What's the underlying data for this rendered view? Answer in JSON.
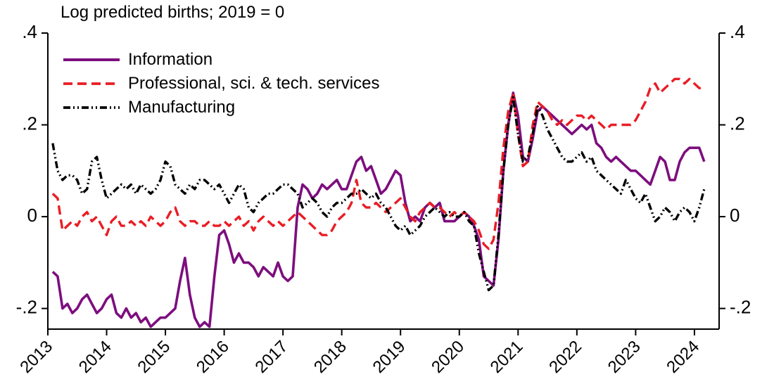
{
  "title": "Log predicted births; 2019 = 0",
  "axis": {
    "y_tick_labels": [
      ".4",
      ".2",
      "0",
      "-.2"
    ],
    "y_tick_values": [
      0.4,
      0.2,
      0,
      -0.2
    ],
    "x_tick_labels": [
      "2013",
      "2014",
      "2015",
      "2016",
      "2017",
      "2018",
      "2019",
      "2020",
      "2021",
      "2022",
      "2023",
      "2024"
    ],
    "x_tick_values": [
      2013,
      2014,
      2015,
      2016,
      2017,
      2018,
      2019,
      2020,
      2021,
      2022,
      2023,
      2024
    ]
  },
  "chart_data": {
    "type": "line",
    "title": "Log predicted births; 2019 = 0",
    "xlabel": "",
    "ylabel": "",
    "xlim": [
      2013,
      2024.42
    ],
    "ylim": [
      -0.245,
      0.4
    ],
    "grid": false,
    "legend_position": "top-left-inside",
    "x_start": 2013.083,
    "x_step_years": 0.08333,
    "x_ticks": [
      2013,
      2014,
      2015,
      2016,
      2017,
      2018,
      2019,
      2020,
      2021,
      2022,
      2023,
      2024
    ],
    "y_ticks": [
      0.4,
      0.2,
      0,
      -0.2
    ],
    "y_tick_labels": [
      ".4",
      ".2",
      "0",
      "-.2"
    ],
    "series": [
      {
        "name": "Information",
        "color": "#7D0E7E",
        "dash": "solid",
        "width": 3.6,
        "values": [
          -0.12,
          -0.13,
          -0.2,
          -0.19,
          -0.21,
          -0.2,
          -0.18,
          -0.17,
          -0.19,
          -0.21,
          -0.2,
          -0.18,
          -0.17,
          -0.21,
          -0.22,
          -0.2,
          -0.22,
          -0.21,
          -0.23,
          -0.22,
          -0.24,
          -0.23,
          -0.22,
          -0.22,
          -0.21,
          -0.2,
          -0.14,
          -0.09,
          -0.17,
          -0.22,
          -0.24,
          -0.23,
          -0.24,
          -0.13,
          -0.04,
          -0.03,
          -0.06,
          -0.1,
          -0.08,
          -0.1,
          -0.1,
          -0.11,
          -0.13,
          -0.11,
          -0.12,
          -0.13,
          -0.1,
          -0.13,
          -0.14,
          -0.13,
          0.02,
          0.07,
          0.06,
          0.04,
          0.05,
          0.07,
          0.06,
          0.07,
          0.08,
          0.06,
          0.06,
          0.09,
          0.12,
          0.13,
          0.1,
          0.11,
          0.08,
          0.05,
          0.06,
          0.08,
          0.1,
          0.09,
          0.03,
          -0.01,
          0.0,
          -0.01,
          0.02,
          0.03,
          0.02,
          0.03,
          -0.01,
          -0.01,
          -0.01,
          0.0,
          0.01,
          0.0,
          -0.02,
          -0.05,
          -0.13,
          -0.14,
          -0.15,
          -0.05,
          0.1,
          0.2,
          0.27,
          0.22,
          0.13,
          0.12,
          0.17,
          0.23,
          0.24,
          0.23,
          0.22,
          0.21,
          0.2,
          0.19,
          0.18,
          0.19,
          0.2,
          0.19,
          0.2,
          0.16,
          0.15,
          0.13,
          0.12,
          0.13,
          0.12,
          0.11,
          0.1,
          0.1,
          0.09,
          0.08,
          0.07,
          0.1,
          0.13,
          0.12,
          0.08,
          0.08,
          0.12,
          0.14,
          0.15,
          0.15,
          0.15,
          0.12
        ]
      },
      {
        "name": "Professional, sci. & tech. services",
        "color": "#E91D25",
        "dash": "13 7",
        "width": 3.4,
        "values": [
          0.05,
          0.04,
          -0.03,
          -0.02,
          -0.01,
          -0.02,
          0.0,
          0.01,
          -0.01,
          0.0,
          -0.02,
          -0.04,
          -0.01,
          0.0,
          -0.02,
          -0.02,
          -0.01,
          -0.02,
          -0.01,
          -0.02,
          0.0,
          -0.01,
          -0.02,
          -0.01,
          0.01,
          0.02,
          -0.01,
          -0.02,
          -0.01,
          -0.01,
          -0.02,
          -0.02,
          -0.01,
          -0.02,
          -0.02,
          -0.01,
          -0.02,
          -0.01,
          0.0,
          -0.02,
          -0.01,
          -0.03,
          -0.01,
          0.0,
          -0.01,
          -0.02,
          -0.01,
          -0.02,
          -0.01,
          0.0,
          0.01,
          0.0,
          -0.01,
          -0.02,
          -0.03,
          -0.04,
          -0.04,
          -0.03,
          -0.01,
          0.0,
          0.01,
          0.03,
          0.08,
          0.03,
          0.02,
          0.02,
          0.03,
          0.02,
          0.01,
          0.02,
          0.03,
          0.04,
          0.02,
          0.0,
          -0.01,
          0.01,
          0.02,
          0.03,
          0.02,
          0.02,
          0.01,
          0.0,
          0.01,
          0.0,
          0.01,
          0.0,
          -0.01,
          -0.03,
          -0.06,
          -0.07,
          -0.05,
          0.03,
          0.15,
          0.23,
          0.27,
          0.18,
          0.11,
          0.12,
          0.2,
          0.25,
          0.24,
          0.23,
          0.21,
          0.2,
          0.21,
          0.2,
          0.21,
          0.22,
          0.22,
          0.21,
          0.22,
          0.21,
          0.2,
          0.19,
          0.2,
          0.2,
          0.2,
          0.2,
          0.2,
          0.21,
          0.23,
          0.25,
          0.28,
          0.29,
          0.27,
          0.28,
          0.29,
          0.3,
          0.3,
          0.29,
          0.3,
          0.29,
          0.28,
          0.28
        ]
      },
      {
        "name": "Manufacturing",
        "color": "#000000",
        "dash": "10 4 2 4 2 4",
        "width": 3.4,
        "values": [
          0.16,
          0.1,
          0.08,
          0.09,
          0.09,
          0.08,
          0.05,
          0.06,
          0.12,
          0.13,
          0.08,
          0.04,
          0.05,
          0.06,
          0.07,
          0.06,
          0.07,
          0.05,
          0.07,
          0.06,
          0.05,
          0.06,
          0.08,
          0.12,
          0.11,
          0.07,
          0.06,
          0.05,
          0.07,
          0.06,
          0.08,
          0.08,
          0.07,
          0.06,
          0.07,
          0.05,
          0.03,
          0.05,
          0.07,
          0.06,
          0.02,
          0.01,
          0.03,
          0.04,
          0.05,
          0.05,
          0.06,
          0.07,
          0.07,
          0.06,
          0.05,
          0.02,
          0.03,
          0.04,
          0.03,
          0.01,
          0.0,
          0.02,
          0.03,
          0.03,
          0.04,
          0.05,
          0.05,
          0.06,
          0.05,
          0.04,
          0.05,
          0.03,
          0.02,
          0.0,
          -0.02,
          -0.03,
          -0.02,
          -0.04,
          -0.03,
          -0.02,
          0.0,
          0.01,
          0.02,
          0.01,
          0.0,
          0.01,
          0.0,
          0.0,
          0.01,
          -0.01,
          -0.02,
          -0.08,
          -0.12,
          -0.16,
          -0.15,
          -0.04,
          0.1,
          0.2,
          0.26,
          0.18,
          0.12,
          0.13,
          0.18,
          0.24,
          0.22,
          0.19,
          0.17,
          0.15,
          0.13,
          0.12,
          0.12,
          0.13,
          0.14,
          0.12,
          0.13,
          0.1,
          0.09,
          0.08,
          0.07,
          0.06,
          0.05,
          0.08,
          0.06,
          0.04,
          0.03,
          0.05,
          0.02,
          -0.01,
          0.0,
          0.02,
          0.01,
          -0.01,
          0.01,
          0.02,
          0.01,
          -0.01,
          0.02,
          0.06
        ]
      }
    ]
  }
}
